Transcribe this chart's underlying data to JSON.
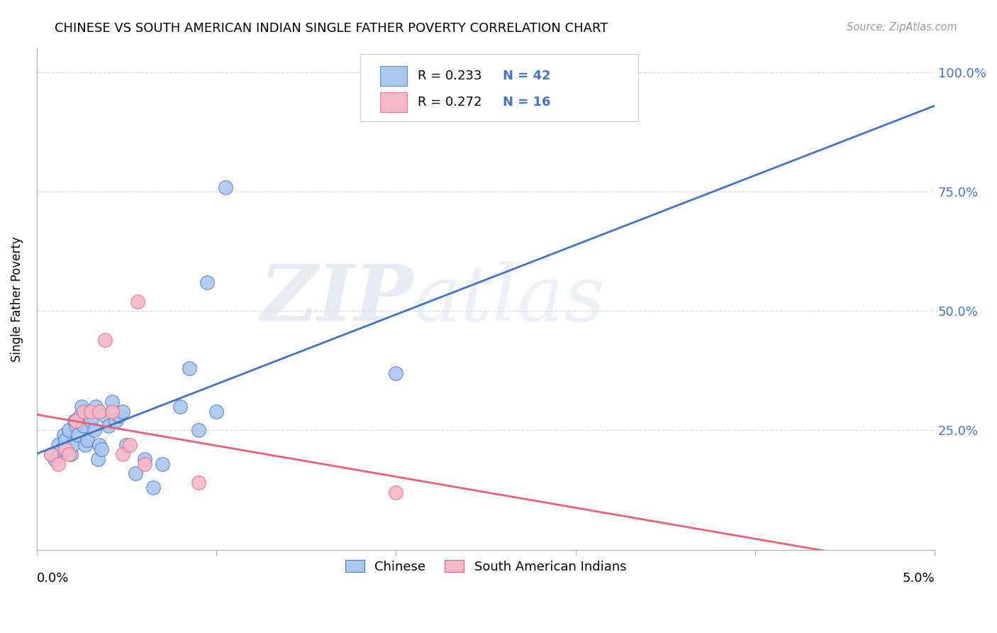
{
  "title": "CHINESE VS SOUTH AMERICAN INDIAN SINGLE FATHER POVERTY CORRELATION CHART",
  "source": "Source: ZipAtlas.com",
  "ylabel": "Single Father Poverty",
  "ytick_vals": [
    0.0,
    0.25,
    0.5,
    0.75,
    1.0
  ],
  "ytick_labels": [
    "",
    "25.0%",
    "50.0%",
    "75.0%",
    "100.0%"
  ],
  "xtick_left": "0.0%",
  "xtick_right": "5.0%",
  "legend_r_chinese": "R = 0.233",
  "legend_n_chinese": "N = 42",
  "legend_r_sa": "R = 0.272",
  "legend_n_sa": "N = 16",
  "chinese_color": "#aac8f0",
  "sa_color": "#f5b8c8",
  "trendline_chinese_color": "#4472c4",
  "trendline_sa_color": "#e8607a",
  "watermark_zip": "ZIP",
  "watermark_atlas": "atlas",
  "xmin": 0.0,
  "xmax": 0.05,
  "ymin": 0.0,
  "ymax": 1.05,
  "background_color": "#ffffff",
  "grid_color": "#d8d8e8",
  "chinese_x": [
    0.0008,
    0.001,
    0.0012,
    0.0014,
    0.0015,
    0.0016,
    0.0017,
    0.0018,
    0.0019,
    0.002,
    0.0021,
    0.0022,
    0.0023,
    0.0024,
    0.0025,
    0.0026,
    0.0027,
    0.0028,
    0.003,
    0.0032,
    0.0033,
    0.0034,
    0.0035,
    0.0036,
    0.0038,
    0.004,
    0.0042,
    0.0044,
    0.0046,
    0.0048,
    0.005,
    0.0055,
    0.006,
    0.0065,
    0.007,
    0.008,
    0.0085,
    0.009,
    0.0095,
    0.01,
    0.0105,
    0.02
  ],
  "chinese_y": [
    0.2,
    0.19,
    0.22,
    0.21,
    0.24,
    0.23,
    0.21,
    0.25,
    0.2,
    0.22,
    0.27,
    0.26,
    0.24,
    0.28,
    0.3,
    0.26,
    0.22,
    0.23,
    0.27,
    0.25,
    0.3,
    0.19,
    0.22,
    0.21,
    0.28,
    0.26,
    0.31,
    0.27,
    0.28,
    0.29,
    0.22,
    0.16,
    0.19,
    0.13,
    0.18,
    0.3,
    0.38,
    0.25,
    0.56,
    0.29,
    0.76,
    0.37
  ],
  "sa_x": [
    0.0008,
    0.0012,
    0.0016,
    0.0018,
    0.0022,
    0.0026,
    0.003,
    0.0035,
    0.0038,
    0.0042,
    0.0048,
    0.0052,
    0.0056,
    0.006,
    0.009,
    0.02
  ],
  "sa_y": [
    0.2,
    0.18,
    0.21,
    0.2,
    0.27,
    0.29,
    0.29,
    0.29,
    0.44,
    0.29,
    0.2,
    0.22,
    0.52,
    0.18,
    0.14,
    0.12
  ]
}
